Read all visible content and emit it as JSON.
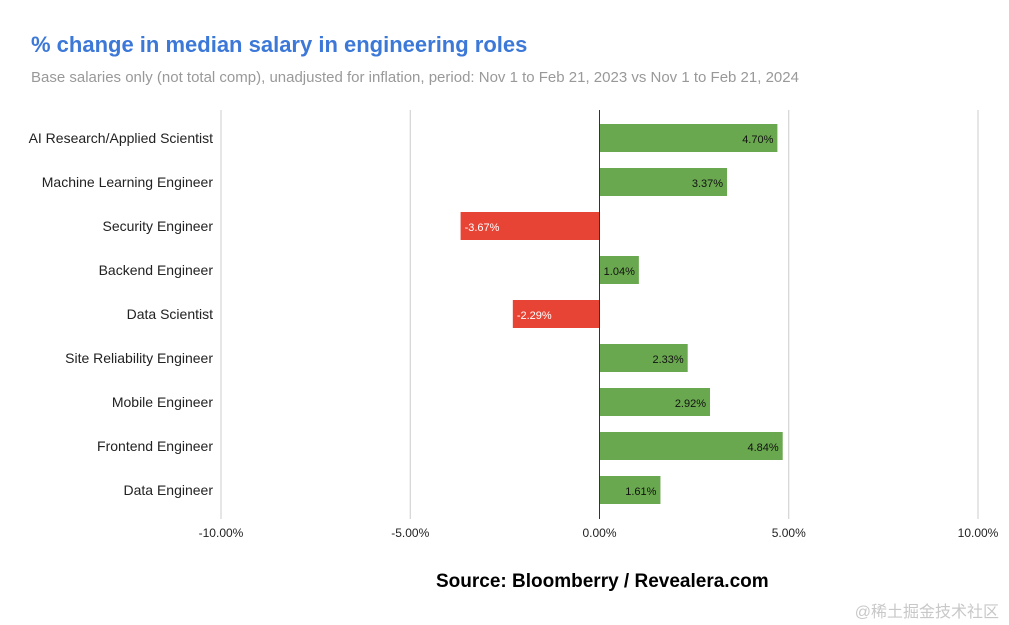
{
  "header": {
    "title": "% change in median salary in engineering roles",
    "subtitle": "Base salaries only (not total comp), unadjusted for inflation, period: Nov 1 to Feb 21, 2023 vs Nov 1 to Feb 21, 2024"
  },
  "footer": {
    "source": "Source: Bloomberry / Revealera.com",
    "watermark": "@稀土掘金技术社区"
  },
  "colors": {
    "positive": "#6aa84f",
    "negative": "#e84436",
    "title": "#3c78d8",
    "gridline": "#cccccc",
    "axis": "#333333"
  },
  "chart_data": {
    "type": "bar",
    "orientation": "horizontal",
    "title": "% change in median salary in engineering roles",
    "subtitle": "Base salaries only (not total comp), unadjusted for inflation, period: Nov 1 to Feb 21, 2023 vs Nov 1 to Feb 21, 2024",
    "categories": [
      "AI Research/Applied Scientist",
      "Machine Learning Engineer",
      "Security Engineer",
      "Backend Engineer",
      "Data Scientist",
      "Site Reliability Engineer",
      "Mobile Engineer",
      "Frontend Engineer",
      "Data Engineer"
    ],
    "values": [
      4.7,
      3.37,
      -3.67,
      1.04,
      -2.29,
      2.33,
      2.92,
      4.84,
      1.61
    ],
    "value_labels": [
      "4.70%",
      "3.37%",
      "-3.67%",
      "1.04%",
      "-2.29%",
      "2.33%",
      "2.92%",
      "4.84%",
      "1.61%"
    ],
    "xlim": [
      -10,
      10
    ],
    "xticks": [
      -10,
      -5,
      0,
      5,
      10
    ],
    "xtick_labels": [
      "-10.00%",
      "-5.00%",
      "0.00%",
      "5.00%",
      "10.00%"
    ],
    "xlabel": "",
    "ylabel": "",
    "grid": true,
    "legend": "none"
  }
}
